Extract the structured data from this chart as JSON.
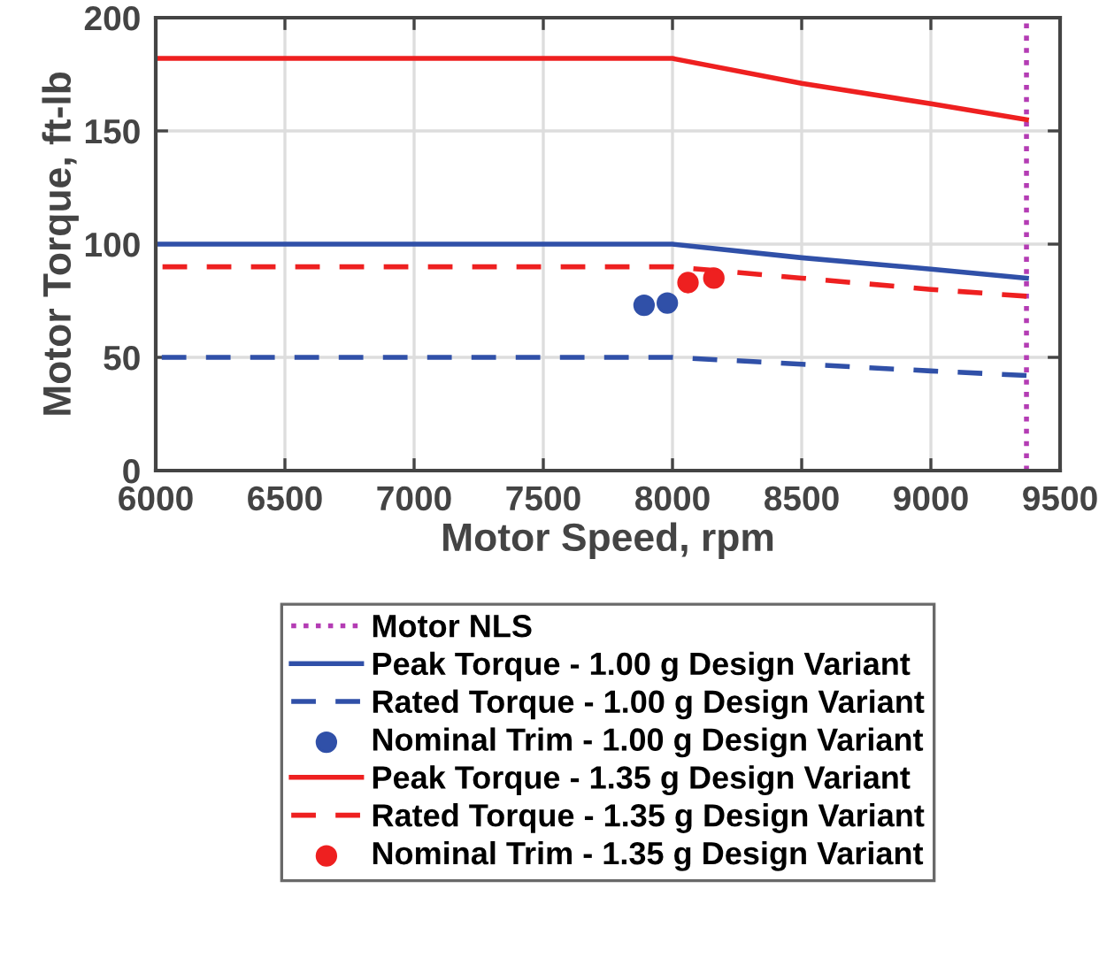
{
  "chart_data": {
    "type": "line",
    "xlabel": "Motor Speed, rpm",
    "ylabel": "Motor Torque, ft-lb",
    "xlim": [
      6000,
      9500
    ],
    "xticks": [
      6000,
      6500,
      7000,
      7500,
      8000,
      8500,
      9000,
      9500
    ],
    "ylim": [
      0,
      200
    ],
    "yticks": [
      0,
      50,
      100,
      150,
      200
    ],
    "grid": true,
    "legend": "bottom",
    "ref_lines": [
      {
        "axis": "x",
        "value": 9370,
        "label": "Motor NLS",
        "color": "#b43cb4",
        "line_style": "dotted"
      }
    ],
    "series": [
      {
        "name": "Peak Torque - 1.00 g Design Variant",
        "color": "#3050a8",
        "line_style": "solid",
        "x": [
          6000,
          8000,
          8500,
          9000,
          9370
        ],
        "values": [
          100,
          100,
          94,
          89,
          85
        ]
      },
      {
        "name": "Rated Torque - 1.00 g Design Variant",
        "color": "#3050a8",
        "line_style": "dashed",
        "x": [
          6000,
          8000,
          8500,
          9000,
          9370
        ],
        "values": [
          50,
          50,
          47,
          44,
          42
        ]
      },
      {
        "name": "Nominal Trim - 1.00 g Design Variant",
        "type": "scatter",
        "color": "#3050a8",
        "marker": "circle",
        "x": [
          7890,
          7980
        ],
        "values": [
          73,
          74
        ]
      },
      {
        "name": "Peak Torque - 1.35 g Design Variant",
        "color": "#ee2020",
        "line_style": "solid",
        "x": [
          6000,
          8000,
          8500,
          9000,
          9370
        ],
        "values": [
          182,
          182,
          171,
          162,
          155
        ]
      },
      {
        "name": "Rated Torque - 1.35 g Design Variant",
        "color": "#ee2020",
        "line_style": "dashed",
        "x": [
          6000,
          8000,
          8500,
          9000,
          9370
        ],
        "values": [
          90,
          90,
          85,
          80,
          77
        ]
      },
      {
        "name": "Nominal Trim - 1.35 g Design Variant",
        "type": "scatter",
        "color": "#ee2020",
        "marker": "circle",
        "x": [
          8060,
          8160
        ],
        "values": [
          83,
          85
        ]
      }
    ]
  }
}
